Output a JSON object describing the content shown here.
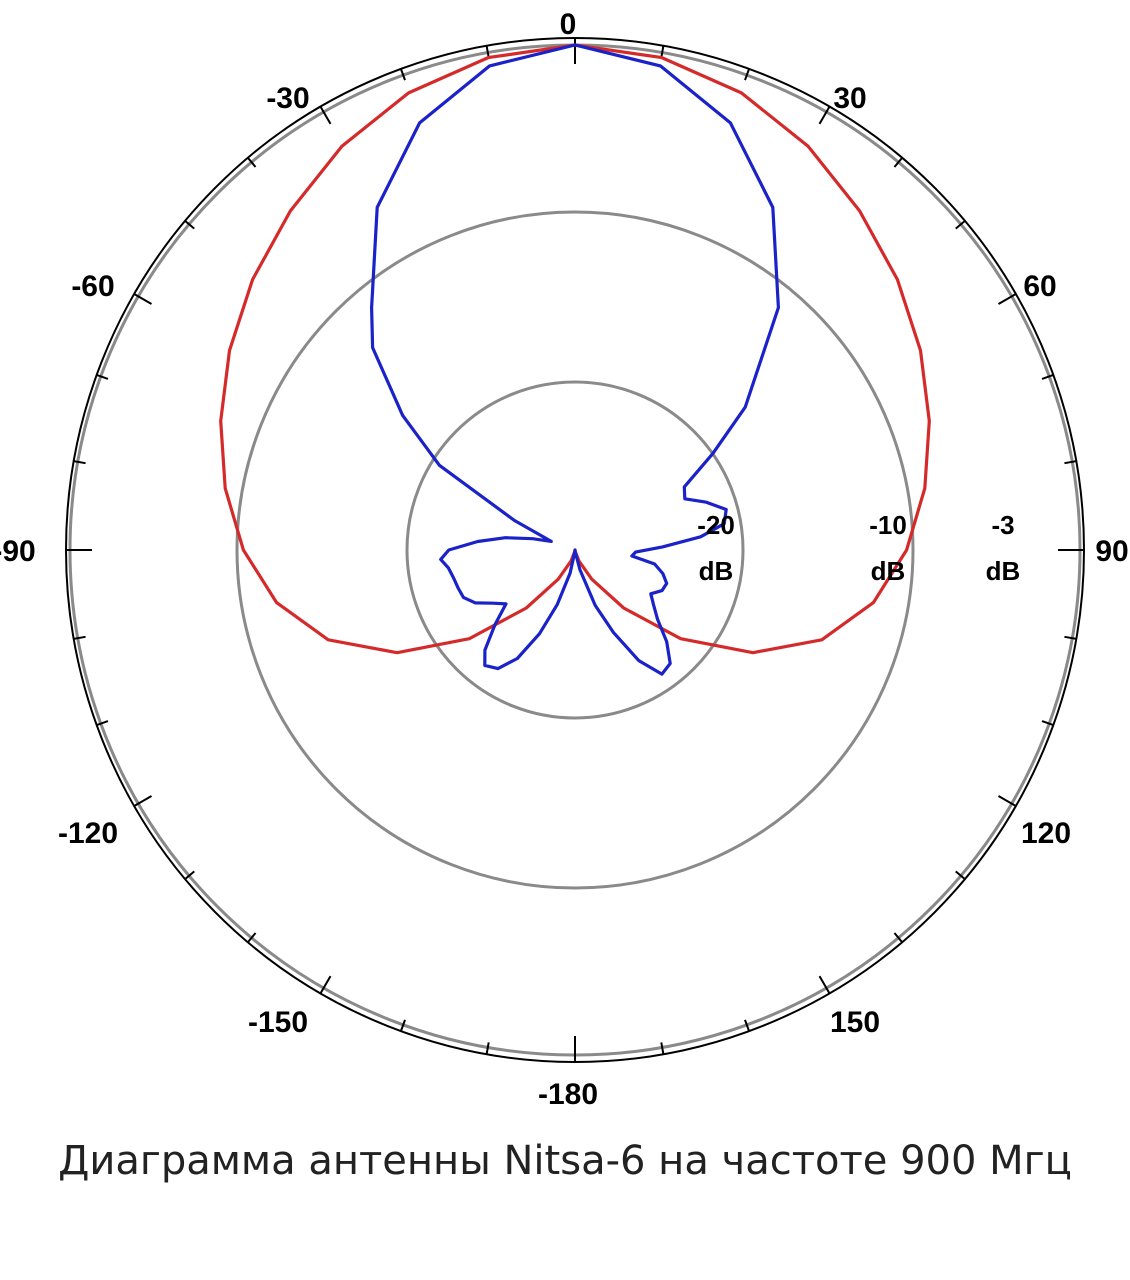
{
  "caption": "Диаграмма антенны Nitsa-6 на частоте 900 Мгц",
  "chart_data": {
    "type": "polar",
    "title": "",
    "angle_labels": [
      {
        "angle": 0,
        "text": "0"
      },
      {
        "angle": 30,
        "text": "30"
      },
      {
        "angle": 60,
        "text": "60"
      },
      {
        "angle": 90,
        "text": "90"
      },
      {
        "angle": 120,
        "text": "120"
      },
      {
        "angle": 150,
        "text": "150"
      },
      {
        "angle": 180,
        "text": "-180"
      },
      {
        "angle": -150,
        "text": "-150"
      },
      {
        "angle": -120,
        "text": "-120"
      },
      {
        "angle": -90,
        "text": "-90"
      },
      {
        "angle": -60,
        "text": "-60"
      },
      {
        "angle": -30,
        "text": "-30"
      }
    ],
    "rings": [
      {
        "db": -20,
        "line1": "-20",
        "line2": "dB"
      },
      {
        "db": -10,
        "line1": "-10",
        "line2": "dB"
      },
      {
        "db": -3,
        "line1": "-3",
        "line2": "dB"
      }
    ],
    "r_range_db": [
      -30,
      0
    ],
    "tick_step_deg": 10,
    "colors": {
      "ring": "#8a8a8a",
      "outer": "#000000"
    },
    "series": [
      {
        "color": "#d42a2a",
        "points": [
          [
            0,
            0
          ],
          [
            10,
            -0.3
          ],
          [
            20,
            -1.1
          ],
          [
            30,
            -2.3
          ],
          [
            40,
            -3.7
          ],
          [
            50,
            -5.0
          ],
          [
            60,
            -6.3
          ],
          [
            70,
            -7.6
          ],
          [
            80,
            -8.9
          ],
          [
            90,
            -10.3
          ],
          [
            100,
            -12.0
          ],
          [
            110,
            -14.4
          ],
          [
            120,
            -17.8
          ],
          [
            130,
            -21.8
          ],
          [
            140,
            -25.5
          ],
          [
            150,
            -28.0
          ],
          [
            160,
            -29.3
          ],
          [
            170,
            -29.9
          ],
          [
            180,
            -30
          ],
          [
            190,
            -29.9
          ],
          [
            200,
            -29.3
          ],
          [
            210,
            -28.0
          ],
          [
            220,
            -25.5
          ],
          [
            230,
            -21.8
          ],
          [
            240,
            -17.8
          ],
          [
            250,
            -14.4
          ],
          [
            260,
            -12.0
          ],
          [
            270,
            -10.3
          ],
          [
            280,
            -8.9
          ],
          [
            290,
            -7.6
          ],
          [
            300,
            -6.3
          ],
          [
            310,
            -5.0
          ],
          [
            320,
            -3.7
          ],
          [
            330,
            -2.3
          ],
          [
            340,
            -1.1
          ],
          [
            350,
            -0.3
          ]
        ]
      },
      {
        "color": "#1a22c8",
        "points": [
          [
            0,
            0
          ],
          [
            10,
            -0.8
          ],
          [
            20,
            -3.0
          ],
          [
            30,
            -6.5
          ],
          [
            40,
            -11.2
          ],
          [
            50,
            -16.8
          ],
          [
            55,
            -20.0
          ],
          [
            60,
            -22.5
          ],
          [
            65,
            -22.8
          ],
          [
            70,
            -21.7
          ],
          [
            75,
            -20.7
          ],
          [
            80,
            -21.0
          ],
          [
            84,
            -22.5
          ],
          [
            88,
            -24.8
          ],
          [
            92,
            -26.4
          ],
          [
            96,
            -26.6
          ],
          [
            100,
            -25.2
          ],
          [
            105,
            -24.6
          ],
          [
            110,
            -24.2
          ],
          [
            115,
            -24.3
          ],
          [
            120,
            -24.8
          ],
          [
            125,
            -24.3
          ],
          [
            130,
            -23.6
          ],
          [
            135,
            -22.3
          ],
          [
            140,
            -21.2
          ],
          [
            145,
            -21.0
          ],
          [
            150,
            -22.4
          ],
          [
            155,
            -24.6
          ],
          [
            160,
            -26.5
          ],
          [
            166,
            -28.8
          ],
          [
            172,
            -29.9
          ],
          [
            180,
            -30
          ],
          [
            186,
            -29.9
          ],
          [
            192,
            -28.6
          ],
          [
            198,
            -26.6
          ],
          [
            203,
            -24.6
          ],
          [
            208,
            -22.7
          ],
          [
            213,
            -21.6
          ],
          [
            218,
            -21.3
          ],
          [
            222,
            -22.0
          ],
          [
            227,
            -23.5
          ],
          [
            232,
            -24.8
          ],
          [
            237,
            -24.2
          ],
          [
            242,
            -23.3
          ],
          [
            247,
            -22.8
          ],
          [
            252,
            -22.7
          ],
          [
            257,
            -22.6
          ],
          [
            262,
            -22.4
          ],
          [
            266,
            -22.0
          ],
          [
            270,
            -22.5
          ],
          [
            275,
            -24.2
          ],
          [
            280,
            -25.8
          ],
          [
            285,
            -27.4
          ],
          [
            290,
            -28.5
          ],
          [
            296,
            -26.0
          ],
          [
            302,
            -20.5
          ],
          [
            308,
            -17.0
          ],
          [
            315,
            -13.0
          ],
          [
            320,
            -11.2
          ],
          [
            330,
            -6.5
          ],
          [
            340,
            -3.0
          ],
          [
            350,
            -0.8
          ]
        ]
      }
    ]
  }
}
